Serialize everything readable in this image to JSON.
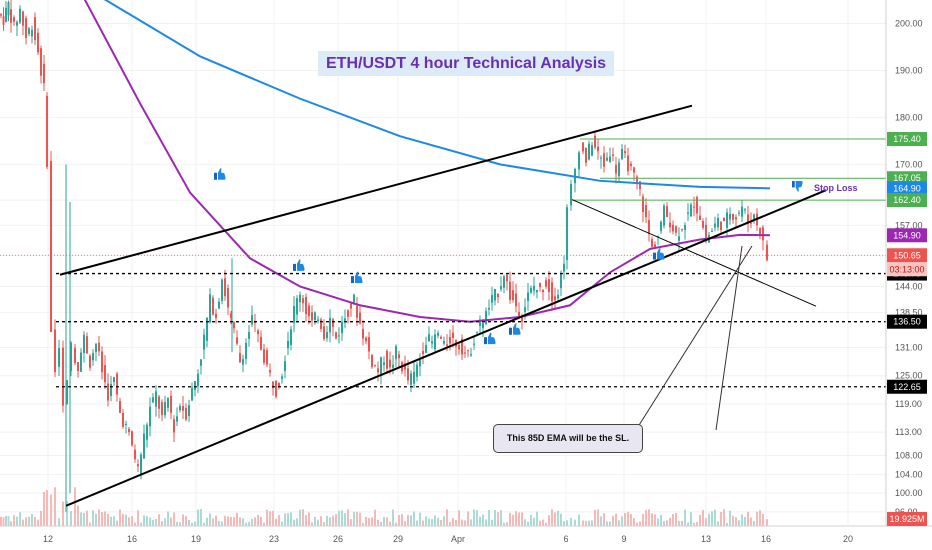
{
  "chart_data": {
    "type": "candlestick",
    "title": "ETH/USDT 4 hour Technical Analysis",
    "x_tick_labels": [
      "12",
      "16",
      "19",
      "23",
      "26",
      "29",
      "Apr",
      "6",
      "9",
      "13",
      "16",
      "20"
    ],
    "y_tick_labels": [
      "200.00",
      "190.00",
      "180.00",
      "170.00",
      "162.40",
      "157.00",
      "150.65",
      "144.00",
      "138.50",
      "131.00",
      "125.00",
      "119.00",
      "113.00",
      "108.00",
      "104.00",
      "100.00",
      "96.00"
    ],
    "ylim": [
      93,
      205
    ],
    "price_levels": [
      {
        "label": "175.40",
        "value": 175.4,
        "color": "#4caf50",
        "text_color": "#ffffff"
      },
      {
        "label": "167.05",
        "value": 167.05,
        "color": "#4caf50",
        "text_color": "#ffffff"
      },
      {
        "label": "164.90",
        "value": 164.9,
        "color": "#1e88e5",
        "text_color": "#ffffff"
      },
      {
        "label": "162.40",
        "value": 162.4,
        "color": "#4caf50",
        "text_color": "#ffffff"
      },
      {
        "label": "154.90",
        "value": 154.9,
        "color": "#9c27b0",
        "text_color": "#ffffff"
      },
      {
        "label": "150.65",
        "value": 150.65,
        "color": "#ef5350",
        "text_color": "#ffffff"
      },
      {
        "label": "146.75",
        "value": 146.75,
        "color": "#000000",
        "text_color": "#ffffff"
      },
      {
        "label": "136.50",
        "value": 136.5,
        "color": "#000000",
        "text_color": "#ffffff"
      },
      {
        "label": "122.65",
        "value": 122.65,
        "color": "#000000",
        "text_color": "#ffffff"
      }
    ],
    "countdown_label": "03:13:00",
    "volume_label": "19.925M",
    "stop_loss_label": "Stop Loss",
    "annotation": "This 85D EMA will be the SL.",
    "price_path": [
      {
        "x": 0,
        "v": 202
      },
      {
        "x": 5,
        "v": 201
      },
      {
        "x": 10,
        "v": 204
      },
      {
        "x": 16,
        "v": 199
      },
      {
        "x": 22,
        "v": 203
      },
      {
        "x": 28,
        "v": 197
      },
      {
        "x": 34,
        "v": 200
      },
      {
        "x": 40,
        "v": 194
      },
      {
        "x": 46,
        "v": 186
      },
      {
        "x": 50,
        "v": 170
      },
      {
        "x": 54,
        "v": 135
      },
      {
        "x": 58,
        "v": 127
      },
      {
        "x": 62,
        "v": 132
      },
      {
        "x": 66,
        "v": 118
      },
      {
        "x": 70,
        "v": 125
      },
      {
        "x": 74,
        "v": 131
      },
      {
        "x": 80,
        "v": 127
      },
      {
        "x": 86,
        "v": 133
      },
      {
        "x": 92,
        "v": 128
      },
      {
        "x": 98,
        "v": 132
      },
      {
        "x": 104,
        "v": 126
      },
      {
        "x": 110,
        "v": 121
      },
      {
        "x": 116,
        "v": 124
      },
      {
        "x": 122,
        "v": 117
      },
      {
        "x": 128,
        "v": 114
      },
      {
        "x": 134,
        "v": 110
      },
      {
        "x": 140,
        "v": 105
      },
      {
        "x": 146,
        "v": 112
      },
      {
        "x": 152,
        "v": 118
      },
      {
        "x": 158,
        "v": 121
      },
      {
        "x": 164,
        "v": 116
      },
      {
        "x": 170,
        "v": 120
      },
      {
        "x": 176,
        "v": 114
      },
      {
        "x": 182,
        "v": 119
      },
      {
        "x": 188,
        "v": 117
      },
      {
        "x": 194,
        "v": 122
      },
      {
        "x": 200,
        "v": 126
      },
      {
        "x": 206,
        "v": 133
      },
      {
        "x": 212,
        "v": 141
      },
      {
        "x": 218,
        "v": 138
      },
      {
        "x": 224,
        "v": 146
      },
      {
        "x": 230,
        "v": 139
      },
      {
        "x": 236,
        "v": 134
      },
      {
        "x": 242,
        "v": 128
      },
      {
        "x": 248,
        "v": 132
      },
      {
        "x": 254,
        "v": 137
      },
      {
        "x": 260,
        "v": 133
      },
      {
        "x": 266,
        "v": 129
      },
      {
        "x": 272,
        "v": 125
      },
      {
        "x": 278,
        "v": 122
      },
      {
        "x": 284,
        "v": 126
      },
      {
        "x": 290,
        "v": 133
      },
      {
        "x": 296,
        "v": 139
      },
      {
        "x": 302,
        "v": 143
      },
      {
        "x": 308,
        "v": 139
      },
      {
        "x": 314,
        "v": 136
      },
      {
        "x": 320,
        "v": 138
      },
      {
        "x": 326,
        "v": 134
      },
      {
        "x": 332,
        "v": 137
      },
      {
        "x": 338,
        "v": 133
      },
      {
        "x": 344,
        "v": 136
      },
      {
        "x": 350,
        "v": 139
      },
      {
        "x": 356,
        "v": 141
      },
      {
        "x": 362,
        "v": 136
      },
      {
        "x": 368,
        "v": 132
      },
      {
        "x": 374,
        "v": 128
      },
      {
        "x": 380,
        "v": 126
      },
      {
        "x": 386,
        "v": 129
      },
      {
        "x": 392,
        "v": 126
      },
      {
        "x": 398,
        "v": 130
      },
      {
        "x": 404,
        "v": 127
      },
      {
        "x": 410,
        "v": 124
      },
      {
        "x": 416,
        "v": 125
      },
      {
        "x": 422,
        "v": 129
      },
      {
        "x": 428,
        "v": 133
      },
      {
        "x": 434,
        "v": 132
      },
      {
        "x": 440,
        "v": 134
      },
      {
        "x": 446,
        "v": 131
      },
      {
        "x": 452,
        "v": 133
      },
      {
        "x": 458,
        "v": 132
      },
      {
        "x": 464,
        "v": 131
      },
      {
        "x": 470,
        "v": 129
      },
      {
        "x": 476,
        "v": 133
      },
      {
        "x": 482,
        "v": 136
      },
      {
        "x": 488,
        "v": 138
      },
      {
        "x": 494,
        "v": 141
      },
      {
        "x": 500,
        "v": 143
      },
      {
        "x": 506,
        "v": 147
      },
      {
        "x": 512,
        "v": 142
      },
      {
        "x": 518,
        "v": 140
      },
      {
        "x": 524,
        "v": 138
      },
      {
        "x": 530,
        "v": 142
      },
      {
        "x": 536,
        "v": 144
      },
      {
        "x": 542,
        "v": 143
      },
      {
        "x": 548,
        "v": 145
      },
      {
        "x": 554,
        "v": 142
      },
      {
        "x": 560,
        "v": 143
      },
      {
        "x": 566,
        "v": 150
      },
      {
        "x": 570,
        "v": 160
      },
      {
        "x": 574,
        "v": 165
      },
      {
        "x": 578,
        "v": 169
      },
      {
        "x": 582,
        "v": 174
      },
      {
        "x": 588,
        "v": 171
      },
      {
        "x": 594,
        "v": 175
      },
      {
        "x": 600,
        "v": 172
      },
      {
        "x": 606,
        "v": 170
      },
      {
        "x": 612,
        "v": 173
      },
      {
        "x": 618,
        "v": 169
      },
      {
        "x": 624,
        "v": 172
      },
      {
        "x": 630,
        "v": 170
      },
      {
        "x": 636,
        "v": 167
      },
      {
        "x": 642,
        "v": 164
      },
      {
        "x": 648,
        "v": 158
      },
      {
        "x": 654,
        "v": 152
      },
      {
        "x": 660,
        "v": 155
      },
      {
        "x": 666,
        "v": 160
      },
      {
        "x": 672,
        "v": 158
      },
      {
        "x": 678,
        "v": 155
      },
      {
        "x": 684,
        "v": 157
      },
      {
        "x": 690,
        "v": 159
      },
      {
        "x": 696,
        "v": 162
      },
      {
        "x": 702,
        "v": 159
      },
      {
        "x": 708,
        "v": 154
      },
      {
        "x": 714,
        "v": 156
      },
      {
        "x": 720,
        "v": 158
      },
      {
        "x": 726,
        "v": 157
      },
      {
        "x": 732,
        "v": 160
      },
      {
        "x": 738,
        "v": 159
      },
      {
        "x": 744,
        "v": 161
      },
      {
        "x": 750,
        "v": 158
      },
      {
        "x": 756,
        "v": 159
      },
      {
        "x": 762,
        "v": 156
      },
      {
        "x": 766,
        "v": 153
      },
      {
        "x": 770,
        "v": 150
      }
    ],
    "ema_blue": [
      {
        "x": 90,
        "v": 207
      },
      {
        "x": 200,
        "v": 193
      },
      {
        "x": 300,
        "v": 184
      },
      {
        "x": 400,
        "v": 176
      },
      {
        "x": 500,
        "v": 170
      },
      {
        "x": 600,
        "v": 166.5
      },
      {
        "x": 700,
        "v": 165.2
      },
      {
        "x": 770,
        "v": 164.9
      }
    ],
    "ema_purple": [
      {
        "x": 80,
        "v": 207
      },
      {
        "x": 140,
        "v": 183
      },
      {
        "x": 190,
        "v": 164
      },
      {
        "x": 250,
        "v": 150
      },
      {
        "x": 300,
        "v": 144
      },
      {
        "x": 360,
        "v": 140
      },
      {
        "x": 420,
        "v": 137.5
      },
      {
        "x": 470,
        "v": 136.5
      },
      {
        "x": 520,
        "v": 137.5
      },
      {
        "x": 570,
        "v": 140
      },
      {
        "x": 610,
        "v": 147
      },
      {
        "x": 650,
        "v": 152
      },
      {
        "x": 700,
        "v": 154
      },
      {
        "x": 740,
        "v": 155
      },
      {
        "x": 770,
        "v": 154.9
      }
    ],
    "trendlines": [
      {
        "x1": 60,
        "v1": 146.5,
        "x2": 692,
        "v2": 182.5
      },
      {
        "x1": 66,
        "v1": 97.3,
        "x2": 826,
        "v2": 164.5
      },
      {
        "x1": 572,
        "v1": 162.5,
        "x2": 816,
        "v2": 139.8
      }
    ],
    "dashed_levels": [
      146.75,
      136.5,
      122.65
    ],
    "colors": {
      "up": "#26a69a",
      "down": "#ef5350",
      "ema_blue": "#1e88e5",
      "ema_purple": "#9c27b0"
    }
  }
}
